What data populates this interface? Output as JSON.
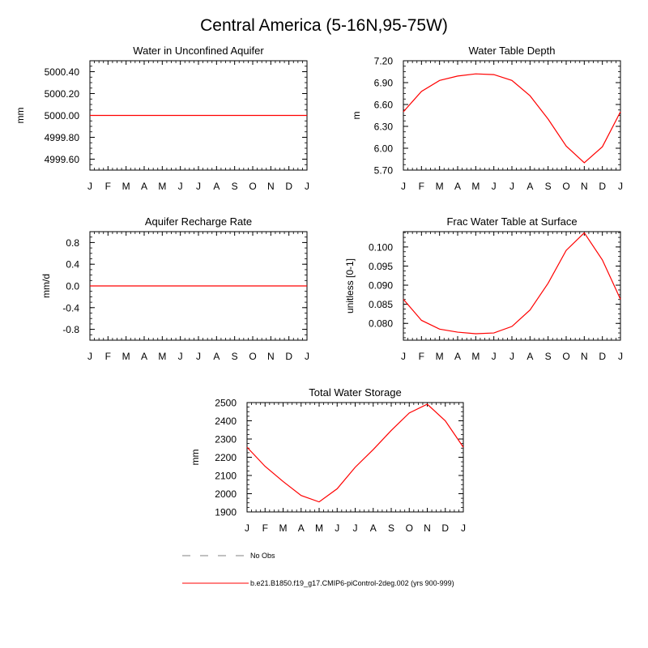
{
  "figure": {
    "title": "Central America (5-16N,95-75W)"
  },
  "legend": {
    "obs_label": "No Obs",
    "model_label": "b.e21.B1850.f19_g17.CMIP6-piControl-2deg.002 (yrs 900-999)",
    "obs_color": "#808080",
    "model_color": "#ff0000"
  },
  "chart_data": [
    {
      "type": "line",
      "title": "Water in Unconfined Aquifer",
      "xlabel": "",
      "ylabel": "mm",
      "categories": [
        "J",
        "F",
        "M",
        "A",
        "M",
        "J",
        "J",
        "A",
        "S",
        "O",
        "N",
        "D",
        "J"
      ],
      "series": [
        {
          "name": "b.e21.B1850.f19_g17.CMIP6-piControl-2deg.002 (yrs 900-999)",
          "values": [
            5000,
            5000,
            5000,
            5000,
            5000,
            5000,
            5000,
            5000,
            5000,
            5000,
            5000,
            5000,
            5000
          ]
        }
      ],
      "ylim": [
        4999.5,
        5000.5
      ],
      "yticks": [
        4999.6,
        4999.8,
        5000.0,
        5000.2,
        5000.4
      ],
      "ytick_labels": [
        "4999.60",
        "4999.80",
        "5000.00",
        "5000.20",
        "5000.40"
      ]
    },
    {
      "type": "line",
      "title": "Water Table Depth",
      "xlabel": "",
      "ylabel": "m",
      "categories": [
        "J",
        "F",
        "M",
        "A",
        "M",
        "J",
        "J",
        "A",
        "S",
        "O",
        "N",
        "D",
        "J"
      ],
      "series": [
        {
          "name": "b.e21.B1850.f19_g17.CMIP6-piControl-2deg.002 (yrs 900-999)",
          "values": [
            6.5,
            6.78,
            6.93,
            6.99,
            7.02,
            7.01,
            6.93,
            6.72,
            6.4,
            6.03,
            5.8,
            6.02,
            6.5
          ]
        }
      ],
      "ylim": [
        5.7,
        7.2
      ],
      "yticks": [
        5.7,
        6.0,
        6.3,
        6.6,
        6.9,
        7.2
      ],
      "ytick_labels": [
        "5.70",
        "6.00",
        "6.30",
        "6.60",
        "6.90",
        "7.20"
      ]
    },
    {
      "type": "line",
      "title": "Aquifer Recharge Rate",
      "xlabel": "",
      "ylabel": "mm/d",
      "categories": [
        "J",
        "F",
        "M",
        "A",
        "M",
        "J",
        "J",
        "A",
        "S",
        "O",
        "N",
        "D",
        "J"
      ],
      "series": [
        {
          "name": "b.e21.B1850.f19_g17.CMIP6-piControl-2deg.002 (yrs 900-999)",
          "values": [
            0,
            0,
            0,
            0,
            0,
            0,
            0,
            0,
            0,
            0,
            0,
            0,
            0
          ]
        }
      ],
      "ylim": [
        -1.0,
        1.0
      ],
      "yticks": [
        -0.8,
        -0.4,
        0.0,
        0.4,
        0.8
      ],
      "ytick_labels": [
        "-0.8",
        "-0.4",
        "0.0",
        "0.4",
        "0.8"
      ]
    },
    {
      "type": "line",
      "title": "Frac Water Table at Surface",
      "xlabel": "",
      "ylabel": "unitless [0-1]",
      "categories": [
        "J",
        "F",
        "M",
        "A",
        "M",
        "J",
        "J",
        "A",
        "S",
        "O",
        "N",
        "D",
        "J"
      ],
      "series": [
        {
          "name": "b.e21.B1850.f19_g17.CMIP6-piControl-2deg.002 (yrs 900-999)",
          "values": [
            0.0863,
            0.0808,
            0.0785,
            0.0777,
            0.0773,
            0.0775,
            0.0792,
            0.0835,
            0.0905,
            0.0991,
            0.1037,
            0.0966,
            0.0863
          ]
        }
      ],
      "ylim": [
        0.0756,
        0.104
      ],
      "yticks": [
        0.08,
        0.085,
        0.09,
        0.095,
        0.1
      ],
      "ytick_labels": [
        "0.080",
        "0.085",
        "0.090",
        "0.095",
        "0.100"
      ]
    },
    {
      "type": "line",
      "title": "Total Water Storage",
      "xlabel": "",
      "ylabel": "mm",
      "categories": [
        "J",
        "F",
        "M",
        "A",
        "M",
        "J",
        "J",
        "A",
        "S",
        "O",
        "N",
        "D",
        "J"
      ],
      "series": [
        {
          "name": "b.e21.B1850.f19_g17.CMIP6-piControl-2deg.002 (yrs 900-999)",
          "values": [
            2255,
            2150,
            2067,
            1990,
            1955,
            2027,
            2145,
            2242,
            2347,
            2443,
            2491,
            2400,
            2255
          ]
        }
      ],
      "ylim": [
        1900,
        2500
      ],
      "yticks": [
        1900,
        2000,
        2100,
        2200,
        2300,
        2400,
        2500
      ],
      "ytick_labels": [
        "1900",
        "2000",
        "2100",
        "2200",
        "2300",
        "2400",
        "2500"
      ]
    }
  ]
}
